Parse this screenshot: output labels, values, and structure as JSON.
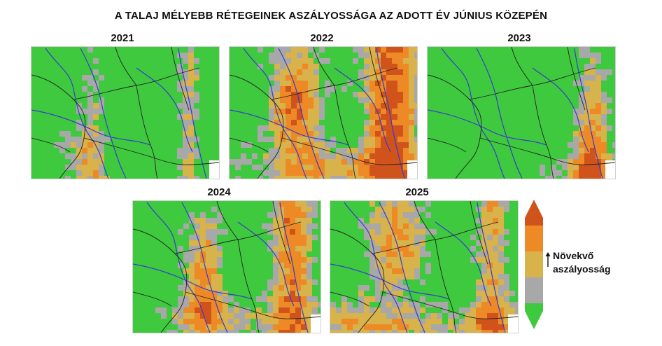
{
  "title": "A TALAJ MÉLYEBB RÉTEGEINEK ASZÁLYOSSÁGA AZ ADOTT ÉV JÚNIUS KÖZEPÉN",
  "colors": {
    "none": "#3ec93e",
    "low": "#a8a8a8",
    "moderate": "#d8b24a",
    "high": "#ee8a26",
    "extreme": "#d0531c",
    "river": "#3a3ad0",
    "border": "#222222"
  },
  "maps": [
    {
      "year": "2021",
      "drought": "low"
    },
    {
      "year": "2022",
      "drought": "high"
    },
    {
      "year": "2023",
      "drought": "moderate-east"
    },
    {
      "year": "2024",
      "drought": "moderate"
    },
    {
      "year": "2025",
      "drought": "moderate-high"
    }
  ],
  "legend": {
    "label_line1": "Növekvő",
    "label_line2": "aszályosság",
    "levels": [
      "extreme",
      "high",
      "moderate",
      "low",
      "none"
    ]
  }
}
